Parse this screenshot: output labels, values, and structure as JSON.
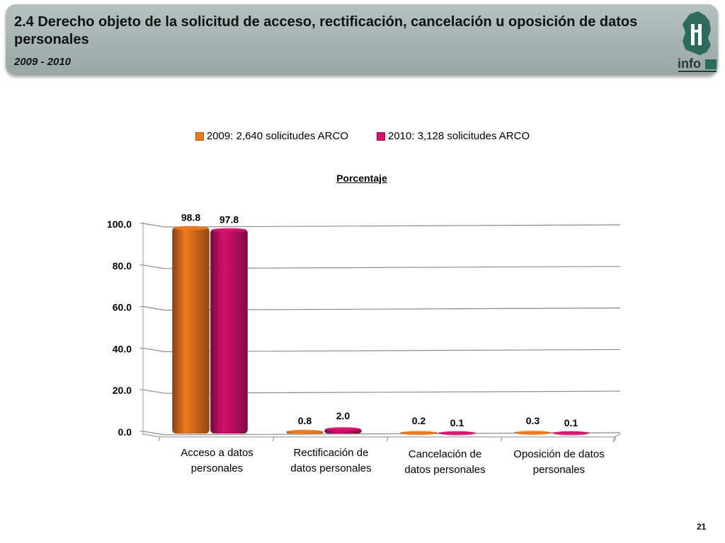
{
  "header": {
    "title": "2.4 Derecho objeto de la solicitud de acceso, rectificación, cancelación u oposición de datos personales",
    "subtitle": "2009 - 2010",
    "logo_text": "info"
  },
  "page_number": "21",
  "colors": {
    "series_2009": "#f07a1e",
    "series_2010": "#d6106e",
    "header_bg": "#a3b0af"
  },
  "chart_data": {
    "type": "bar",
    "title": "Porcentaje",
    "categories": [
      "Acceso a datos personales",
      "Rectificación de datos personales",
      "Cancelación de datos personales",
      "Oposición de datos personales"
    ],
    "category_lines": [
      [
        "Acceso a datos",
        "personales"
      ],
      [
        "Rectificación de",
        "datos personales"
      ],
      [
        "Cancelación de",
        "datos personales"
      ],
      [
        "Oposición de datos",
        "personales"
      ]
    ],
    "series": [
      {
        "name": "2009: 2,640 solicitudes ARCO",
        "values": [
          98.8,
          0.8,
          0.2,
          0.3
        ],
        "labels": [
          "98.8",
          "0.8",
          "0.2",
          "0.3"
        ],
        "color": "#f07a1e"
      },
      {
        "name": "2010: 3,128 solicitudes ARCO",
        "values": [
          97.8,
          2.0,
          0.1,
          0.1
        ],
        "labels": [
          "97.8",
          "2.0",
          "0.1",
          "0.1"
        ],
        "color": "#d6106e"
      }
    ],
    "ylim": [
      0,
      100
    ],
    "yticks": [
      0,
      20,
      40,
      60,
      80,
      100
    ],
    "ytick_labels": [
      "0.0",
      "20.0",
      "40.0",
      "60.0",
      "80.0",
      "100.0"
    ],
    "grid": true,
    "legend": "top-center"
  }
}
